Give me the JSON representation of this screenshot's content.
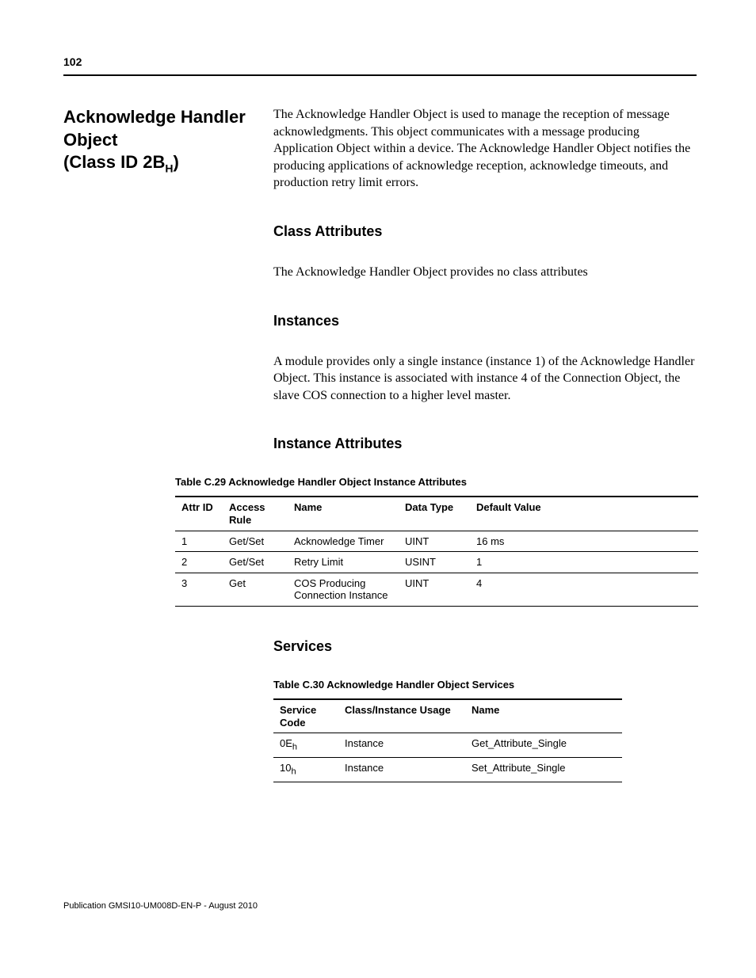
{
  "page_number": "102",
  "section_title_l1": "Acknowledge Handler Object",
  "section_title_l2a": "(Class ID 2B",
  "section_title_l2b": "H",
  "section_title_l2c": ")",
  "intro_para": "The Acknowledge Handler Object is used to manage the reception of message acknowledgments. This object communicates with a message producing Application Object within a device. The Acknowledge Handler Object notifies the producing applications of acknowledge reception, acknowledge timeouts, and production retry limit errors.",
  "class_attr_head": "Class Attributes",
  "class_attr_text": "The Acknowledge Handler Object provides no class attributes",
  "instances_head": "Instances",
  "instances_text": "A module provides only a single instance (instance 1) of the Acknowledge Handler Object. This instance is associated with instance 4 of the Connection Object, the slave COS connection to a higher level master.",
  "inst_attr_head": "Instance Attributes",
  "table1_caption": "Table C.29 Acknowledge Handler Object Instance Attributes",
  "table1_headers": {
    "h1": "Attr ID",
    "h2": "Access Rule",
    "h3": "Name",
    "h4": "Data Type",
    "h5": "Default Value"
  },
  "table1_rows": [
    {
      "c1": "1",
      "c2": "Get/Set",
      "c3": "Acknowledge Timer",
      "c4": "UINT",
      "c5": "16 ms"
    },
    {
      "c1": "2",
      "c2": "Get/Set",
      "c3": "Retry Limit",
      "c4": "USINT",
      "c5": "1"
    },
    {
      "c1": "3",
      "c2": "Get",
      "c3": "COS Producing Connection Instance",
      "c4": "UINT",
      "c5": "4"
    }
  ],
  "services_head": "Services",
  "table2_caption": "Table C.30 Acknowledge Handler Object Services",
  "table2_headers": {
    "h1": "Service Code",
    "h2": "Class/Instance Usage",
    "h3": "Name"
  },
  "table2_rows": [
    {
      "c1a": "0E",
      "c1b": "h",
      "c2": "Instance",
      "c3": "Get_Attribute_Single"
    },
    {
      "c1a": "10",
      "c1b": "h",
      "c2": "Instance",
      "c3": "Set_Attribute_Single"
    }
  ],
  "footer_text": "Publication GMSI10-UM008D-EN-P - August 2010"
}
